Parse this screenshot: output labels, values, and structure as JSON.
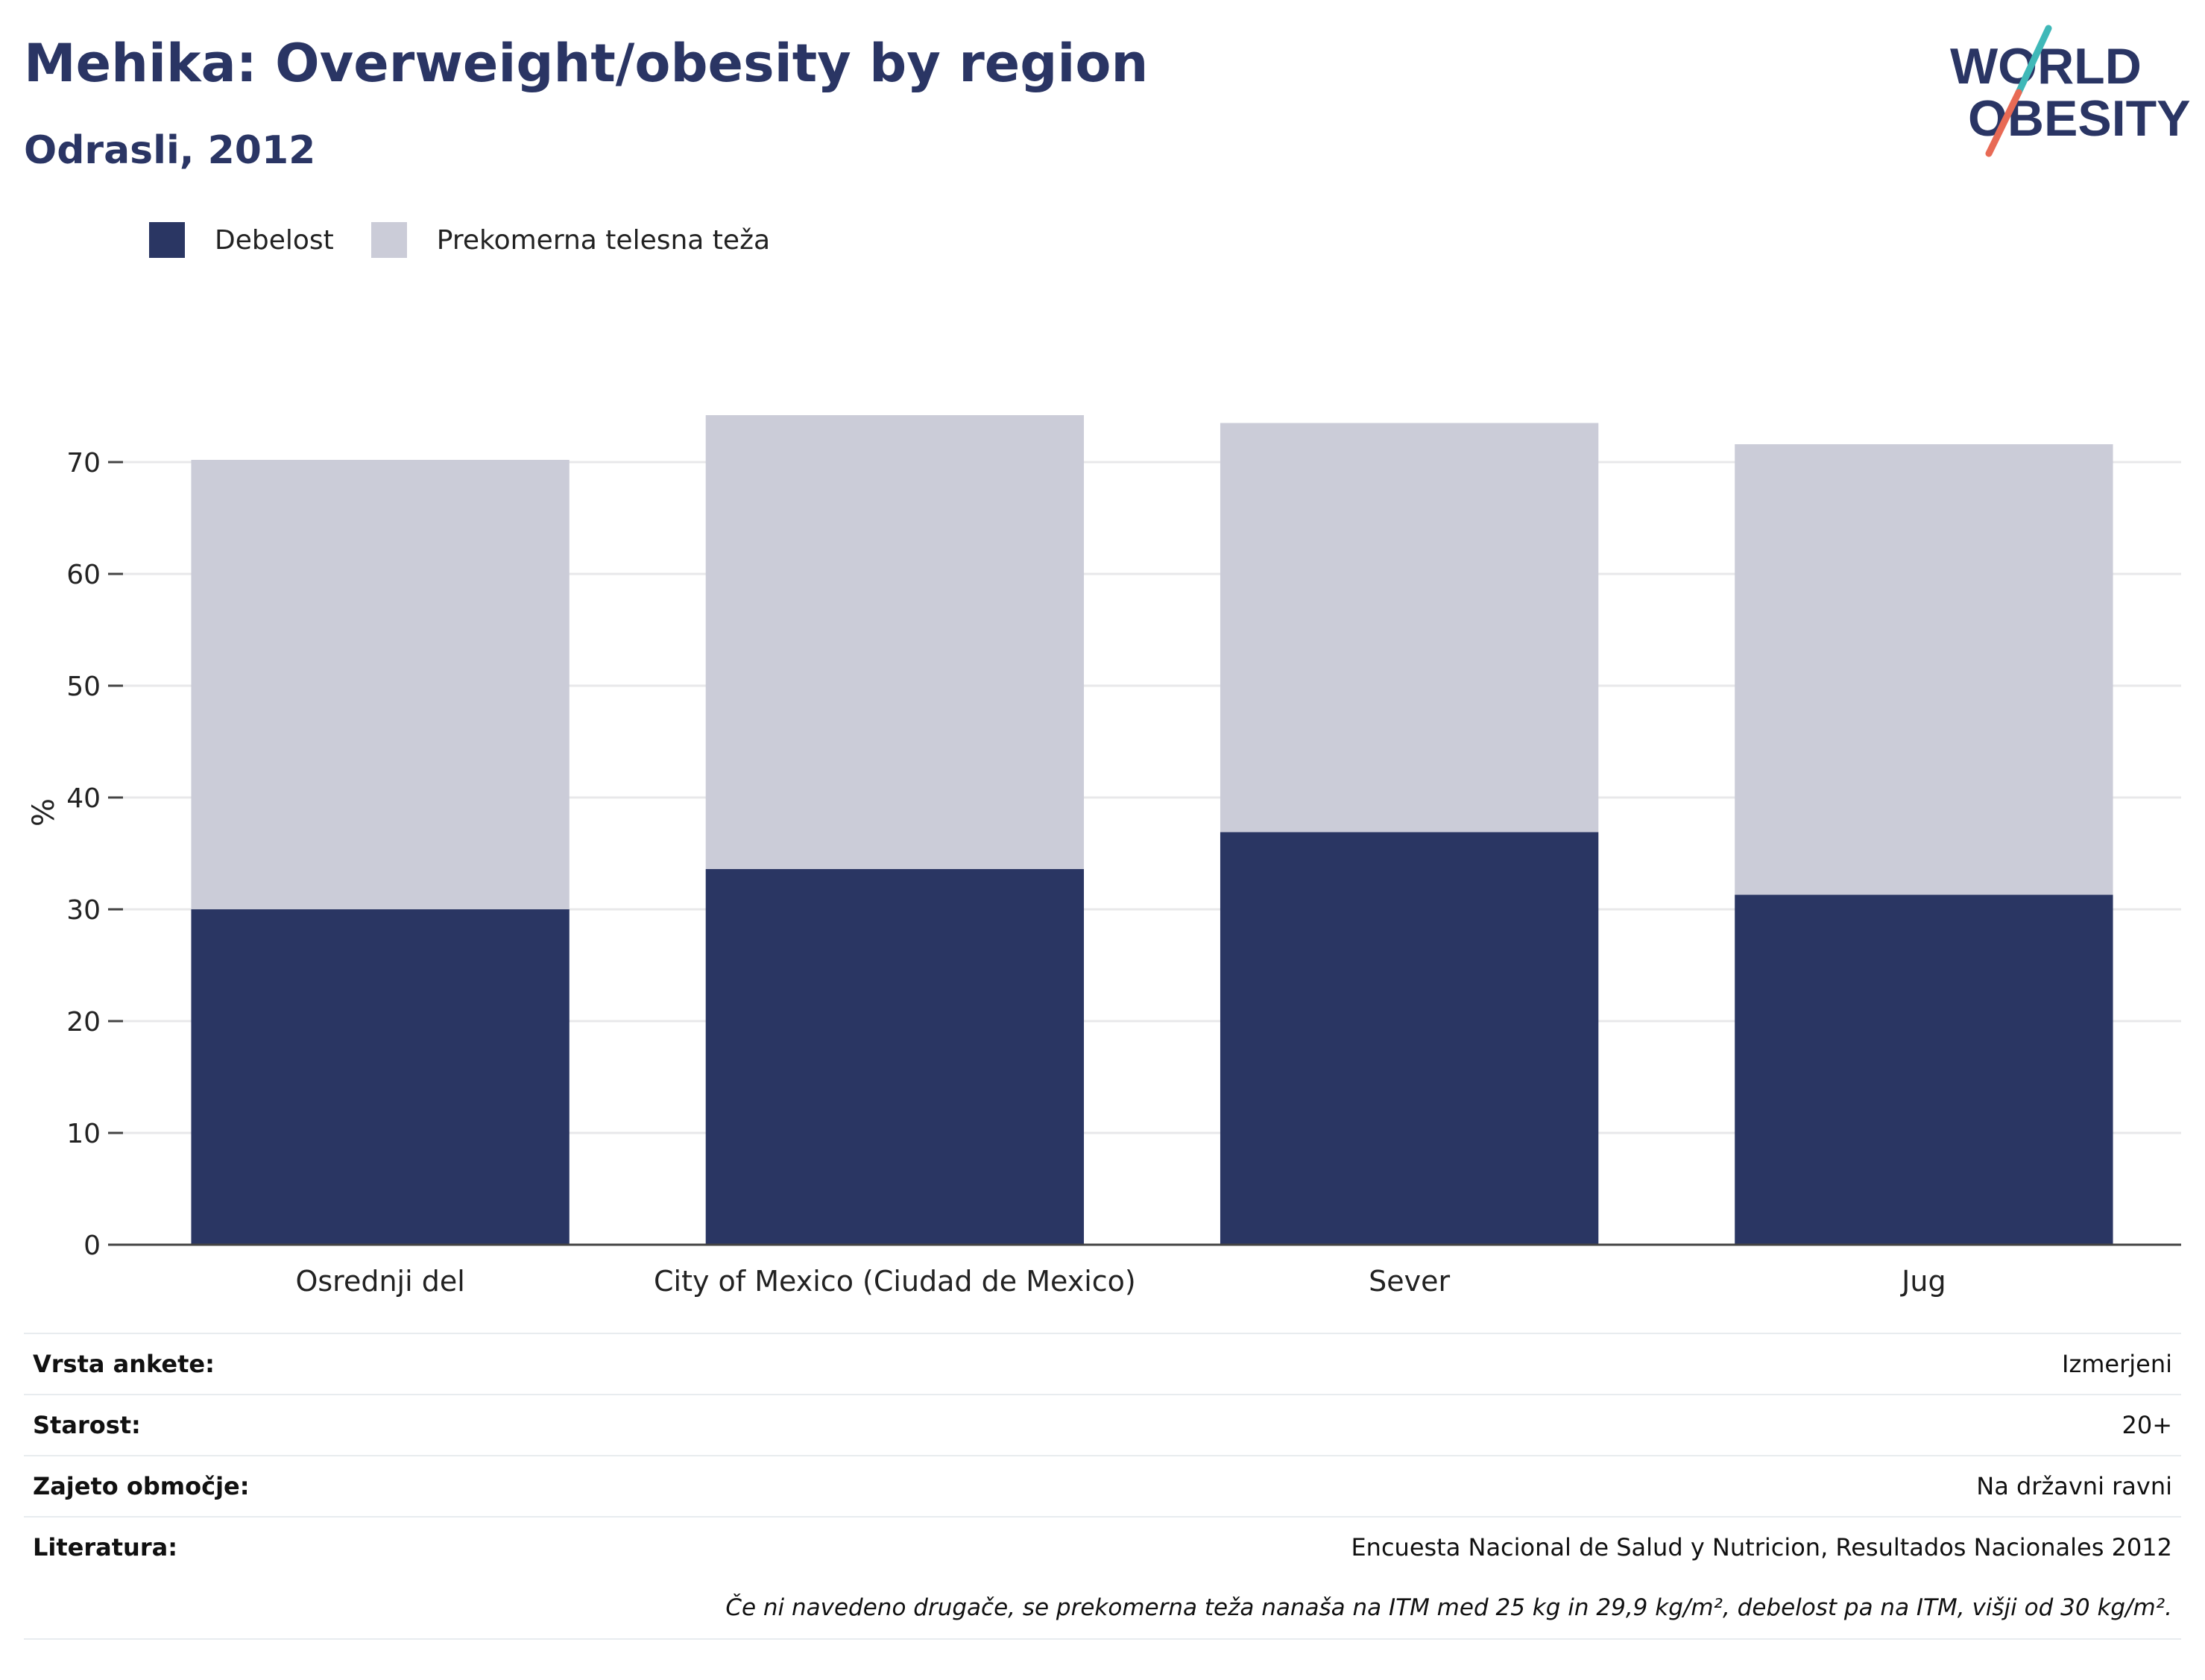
{
  "header": {
    "title": "Mehika: Overweight/obesity by region",
    "subtitle": "Odrasli, 2012"
  },
  "logo": {
    "line1": "WORLD",
    "line2": "OBESITY"
  },
  "colors": {
    "obesity": "#2a3663",
    "overweight": "#cbccd8",
    "text": "#2a3564",
    "grid": "#e8e8ea"
  },
  "chart_data": {
    "type": "bar",
    "stacked": true,
    "categories": [
      "Osrednji del",
      "City of Mexico (Ciudad de Mexico)",
      "Sever",
      "Jug"
    ],
    "series": [
      {
        "name": "Debelost",
        "values": [
          30.0,
          33.6,
          36.9,
          31.3
        ]
      },
      {
        "name": "Prekomerna telesna teža",
        "values": [
          40.2,
          40.6,
          36.6,
          40.3
        ]
      }
    ],
    "ylabel": "%",
    "ylim": [
      0,
      80
    ],
    "yticks": [
      0,
      10,
      20,
      30,
      40,
      50,
      60,
      70
    ],
    "grid": true,
    "legend_position": "top-left"
  },
  "info": {
    "rows": [
      {
        "label": "Vrsta ankete:",
        "value": "Izmerjeni"
      },
      {
        "label": "Starost:",
        "value": "20+"
      },
      {
        "label": "Zajeto območje:",
        "value": "Na državni ravni"
      },
      {
        "label": "Literatura:",
        "value": "Encuesta Nacional de Salud y Nutricion, Resultados Nacionales 2012"
      }
    ],
    "note": "Če ni navedeno drugače, se prekomerna teža nanaša na ITM med 25 kg in 29,9 kg/m², debelost pa na ITM, višji od 30 kg/m²."
  }
}
